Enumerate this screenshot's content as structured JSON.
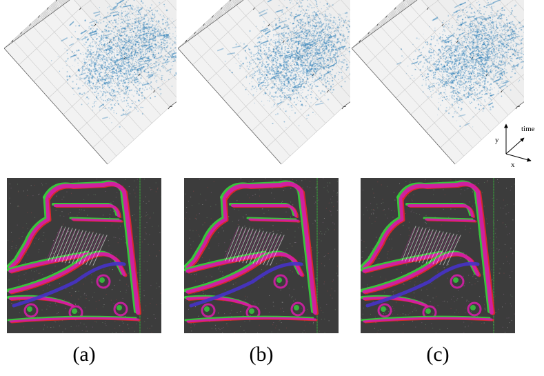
{
  "figure": {
    "panels": [
      {
        "id": "a",
        "caption": "(a)"
      },
      {
        "id": "b",
        "caption": "(b)"
      },
      {
        "id": "c",
        "caption": "(c)"
      }
    ],
    "axes_indicator": {
      "x_label": "x",
      "y_label": "y",
      "t_label": "time"
    },
    "colors": {
      "point_cloud": "#1f77b4",
      "pane": "#f2f2f2",
      "grid": "#cccccc",
      "image_bg": "#3c3c3c",
      "magenta": "#d21ea5",
      "green": "#37d23c",
      "red": "#e62828",
      "blue": "#4632c8"
    }
  }
}
